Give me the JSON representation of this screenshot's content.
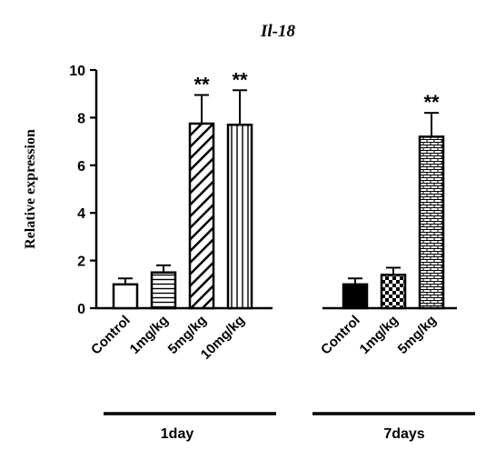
{
  "chart_data": {
    "type": "bar",
    "title": "Il-18",
    "ylabel": "Relative expression",
    "xlabel": "",
    "ylim": [
      0,
      10
    ],
    "yticks": [
      "0",
      "2",
      "4",
      "6",
      "8",
      "10"
    ],
    "grid": false,
    "groups": [
      {
        "label": "1day",
        "bars": [
          {
            "category": "Control",
            "value": 1.0,
            "error": 0.25,
            "fill": "white",
            "significance": ""
          },
          {
            "category": "1mg/kg",
            "value": 1.5,
            "error": 0.3,
            "fill": "horizontal-lines",
            "significance": ""
          },
          {
            "category": "5mg/kg",
            "value": 7.75,
            "error": 1.2,
            "fill": "diagonal-stripes",
            "significance": "**"
          },
          {
            "category": "10mg/kg",
            "value": 7.7,
            "error": 1.45,
            "fill": "vertical-lines",
            "significance": "**"
          }
        ]
      },
      {
        "label": "7days",
        "bars": [
          {
            "category": "Control",
            "value": 1.0,
            "error": 0.25,
            "fill": "black",
            "significance": ""
          },
          {
            "category": "1mg/kg",
            "value": 1.4,
            "error": 0.3,
            "fill": "checkerboard",
            "significance": ""
          },
          {
            "category": "5mg/kg",
            "value": 7.2,
            "error": 1.0,
            "fill": "brick",
            "significance": "**"
          }
        ]
      }
    ]
  }
}
